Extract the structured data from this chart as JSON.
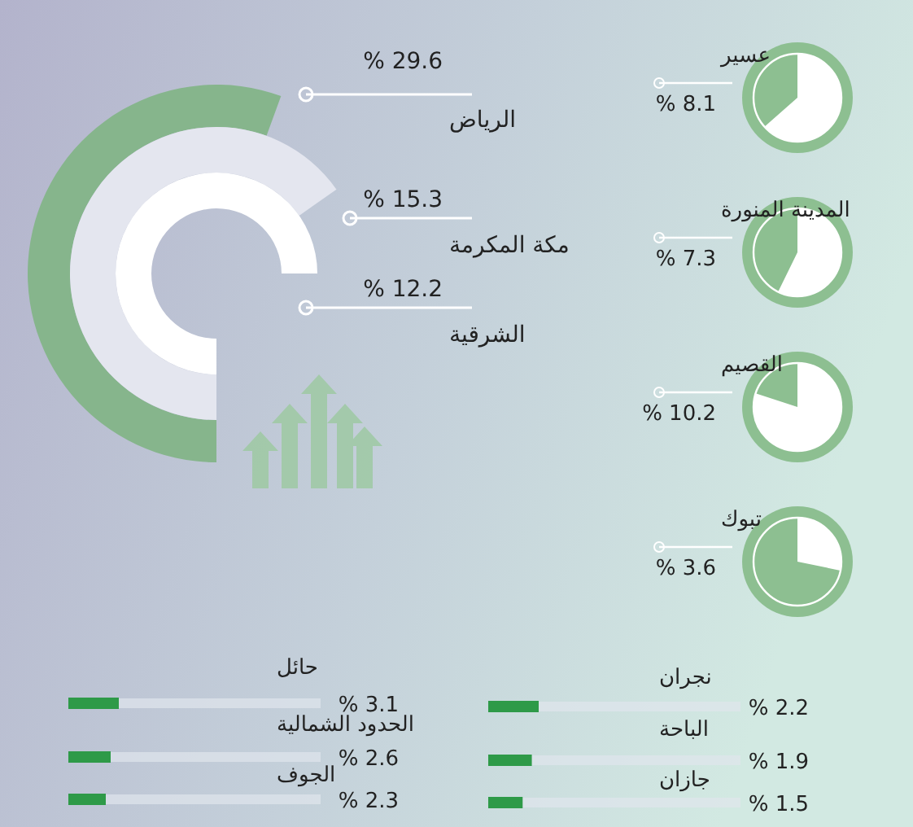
{
  "chart_data": [
    {
      "type": "other",
      "categories": [
        "الرياض",
        "مكة المكرمة",
        "الشرقية"
      ],
      "values": [
        29.6,
        15.3,
        12.2
      ],
      "value_labels": [
        "% 29.6",
        "% 15.3",
        "% 12.2"
      ],
      "colors": [
        "#86b58c",
        "#e4e6ef",
        "#ffffff"
      ]
    },
    {
      "type": "other",
      "categories": [
        "عسير",
        "المدينة المنورة",
        "القصيم",
        "تبوك"
      ],
      "values": [
        8.1,
        7.3,
        10.2,
        3.6
      ],
      "value_labels": [
        "% 8.1",
        "% 7.3",
        "% 10.2",
        "% 3.6"
      ],
      "color": "#8dbf91"
    },
    {
      "type": "bar",
      "orientation": "horizontal",
      "categories": [
        "حائل",
        "الحدود الشمالية",
        "الجوف"
      ],
      "values": [
        3.1,
        2.6,
        2.3
      ],
      "value_labels": [
        "% 3.1",
        "% 2.6",
        "% 2.3"
      ],
      "color": "#2e9a48"
    },
    {
      "type": "bar",
      "orientation": "horizontal",
      "categories": [
        "نجران",
        "الباحة",
        "جازان"
      ],
      "values": [
        2.2,
        1.9,
        1.5
      ],
      "value_labels": [
        "% 2.2",
        "% 1.9",
        "% 1.5"
      ],
      "color": "#2e9a48"
    }
  ]
}
